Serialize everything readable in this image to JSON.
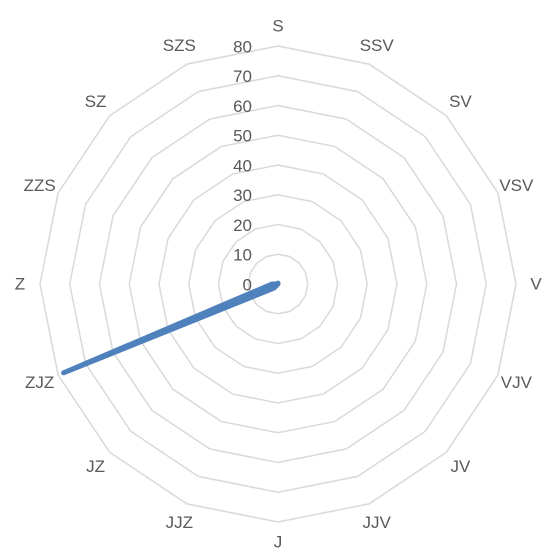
{
  "chart_data": {
    "type": "radar",
    "categories": [
      "S",
      "SSV",
      "SV",
      "VSV",
      "V",
      "VJV",
      "JV",
      "JJV",
      "J",
      "JJZ",
      "JZ",
      "ZJZ",
      "Z",
      "ZZS",
      "SZ",
      "SZS"
    ],
    "series": [
      {
        "name": null,
        "color": "#4f81bd",
        "values": [
          0.3,
          0,
          0,
          0,
          0,
          0,
          0,
          0,
          0,
          0,
          2,
          78,
          2,
          0,
          0,
          0
        ]
      }
    ],
    "ylim": [
      0,
      80
    ],
    "yticks": [
      0,
      10,
      20,
      30,
      40,
      50,
      60,
      70,
      80
    ],
    "grid": true
  }
}
